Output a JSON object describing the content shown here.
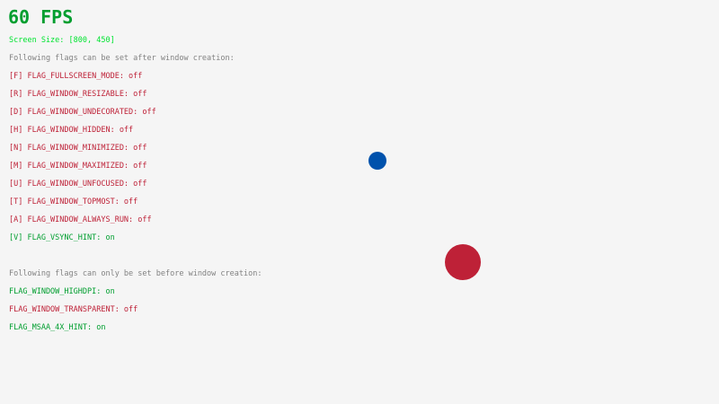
{
  "fps": "60 FPS",
  "screen_size": "Screen Size: [800, 450]",
  "after_heading": "Following flags can be set after window creation:",
  "after_flags": [
    {
      "label": "[F] FLAG_FULLSCREEN_MODE: off",
      "on": false
    },
    {
      "label": "[R] FLAG_WINDOW_RESIZABLE: off",
      "on": false
    },
    {
      "label": "[D] FLAG_WINDOW_UNDECORATED: off",
      "on": false
    },
    {
      "label": "[H] FLAG_WINDOW_HIDDEN: off",
      "on": false
    },
    {
      "label": "[N] FLAG_WINDOW_MINIMIZED: off",
      "on": false
    },
    {
      "label": "[M] FLAG_WINDOW_MAXIMIZED: off",
      "on": false
    },
    {
      "label": "[U] FLAG_WINDOW_UNFOCUSED: off",
      "on": false
    },
    {
      "label": "[T] FLAG_WINDOW_TOPMOST: off",
      "on": false
    },
    {
      "label": "[A] FLAG_WINDOW_ALWAYS_RUN: off",
      "on": false
    },
    {
      "label": "[V] FLAG_VSYNC_HINT: on",
      "on": true
    }
  ],
  "before_heading": "Following flags can only be set before window creation:",
  "before_flags": [
    {
      "label": "FLAG_WINDOW_HIGHDPI: on",
      "on": true
    },
    {
      "label": "FLAG_WINDOW_TRANSPARENT: off",
      "on": false
    },
    {
      "label": "FLAG_MSAA_4X_HINT: on",
      "on": true
    }
  ],
  "colors": {
    "background": "#f5f5f5",
    "fps": "#009e2f",
    "screen_size": "#00e430",
    "heading": "#828282",
    "on": "#009e2f",
    "off": "#be2137",
    "ball_small": "#0052ac",
    "ball_large": "#be2137"
  }
}
